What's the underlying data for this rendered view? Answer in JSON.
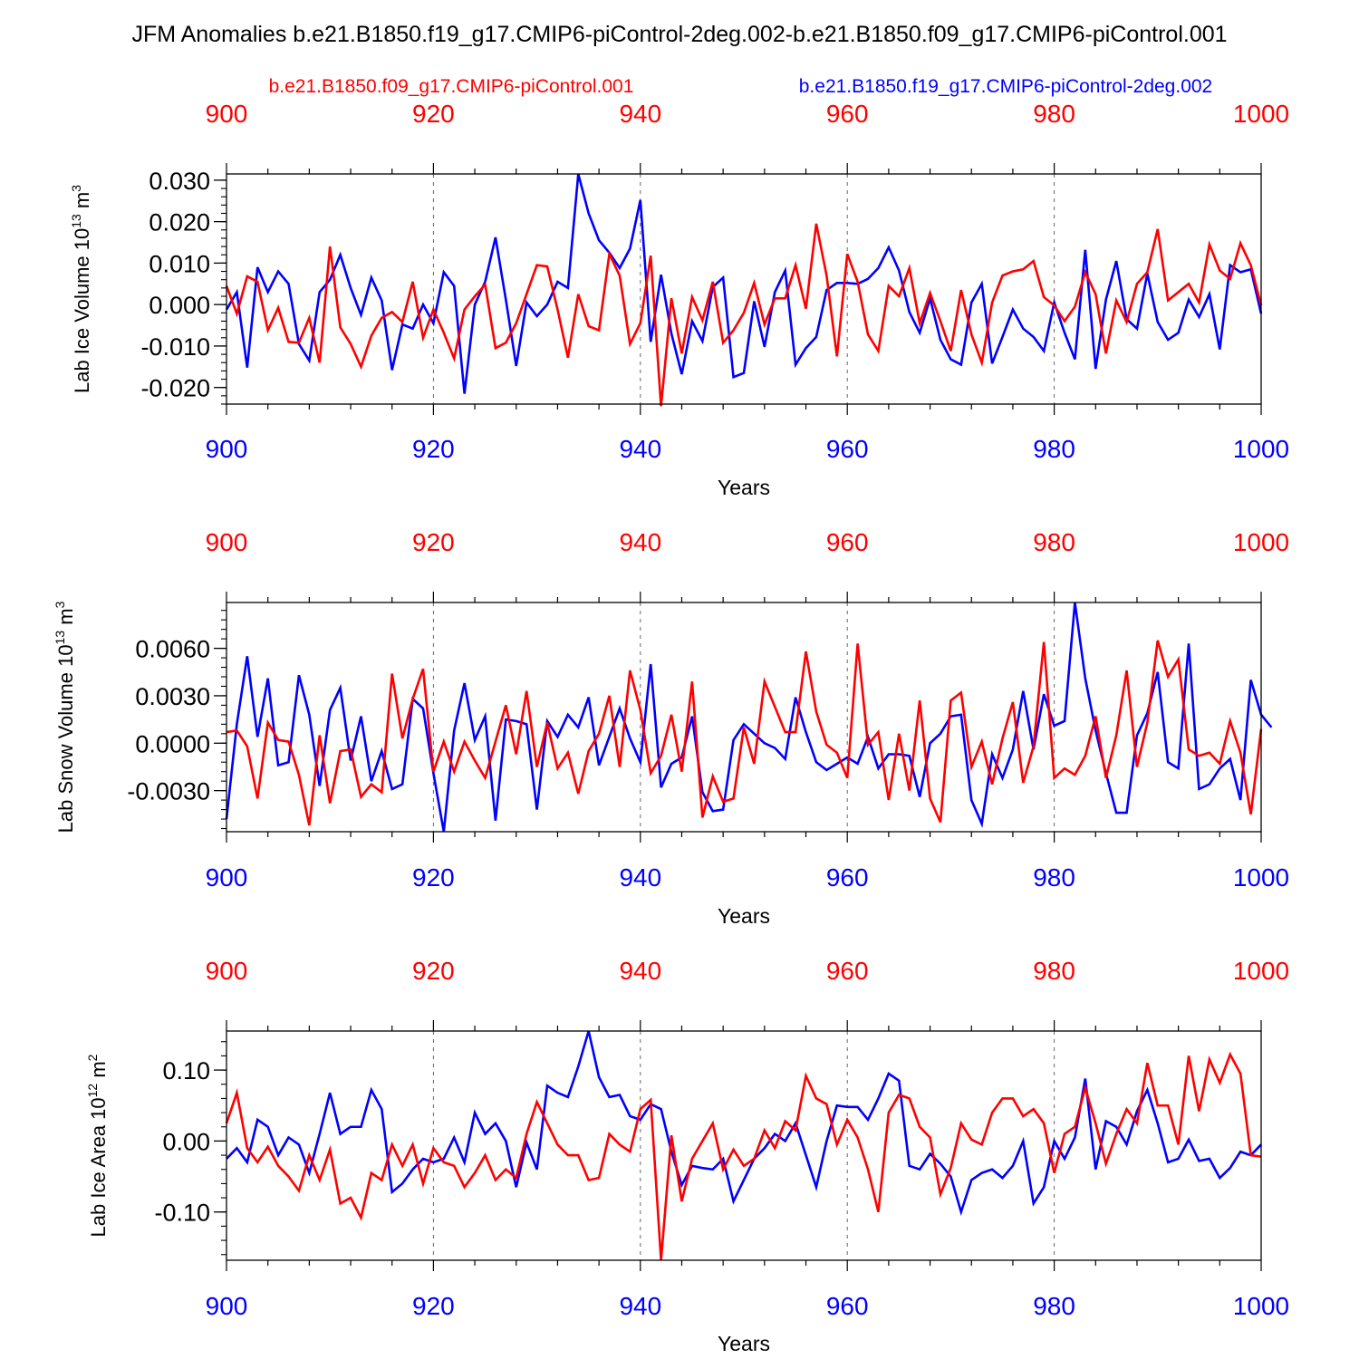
{
  "title": "JFM Anomalies b.e21.B1850.f19_g17.CMIP6-piControl-2deg.002-b.e21.B1850.f09_g17.CMIP6-piControl.001",
  "legend": {
    "red_label": "b.e21.B1850.f09_g17.CMIP6-piControl.001",
    "blue_label": "b.e21.B1850.f19_g17.CMIP6-piControl-2deg.002"
  },
  "colors": {
    "red": "#ff0000",
    "blue": "#0000ff",
    "axis": "#000000"
  },
  "chart_data": [
    {
      "type": "line",
      "ylabel": "Lab Ice Volume 10",
      "ylabel_exp": "13",
      "ylabel_unit": " m",
      "ylabel_unit_exp": "3",
      "xlabel": "Years",
      "xlim": [
        900,
        1000
      ],
      "ylim": [
        -0.024,
        0.0315
      ],
      "yticks": [
        -0.02,
        -0.01,
        0.0,
        0.01,
        0.02,
        0.03
      ],
      "yticklabels": [
        "-0.020",
        "-0.010",
        "0.000",
        "0.010",
        "0.020",
        "0.030"
      ],
      "yminor": 0.002,
      "xticks": [
        900,
        920,
        940,
        960,
        980,
        1000
      ],
      "xticklabels": [
        "900",
        "920",
        "940",
        "960",
        "980",
        "1000"
      ],
      "series": [
        {
          "name": "b.e21.B1850.f19_g17.CMIP6-piControl-2deg.002",
          "color": "blue",
          "values": [
            -0.0012,
            0.003,
            -0.0152,
            0.009,
            0.003,
            0.008,
            0.005,
            -0.0095,
            -0.0135,
            0.003,
            0.006,
            0.012,
            0.004,
            -0.0025,
            0.0065,
            0.001,
            -0.0158,
            -0.0048,
            -0.0058,
            0.0,
            -0.0045,
            0.0078,
            0.0045,
            -0.0215,
            0.0,
            0.0055,
            0.0162,
            0.0012,
            -0.0148,
            0.0005,
            -0.0028,
            0.0,
            0.0055,
            0.004,
            0.0315,
            0.022,
            0.0155,
            0.0125,
            0.0088,
            0.0135,
            0.0252,
            -0.009,
            0.0072,
            -0.007,
            -0.0168,
            -0.004,
            -0.0088,
            0.0042,
            0.0065,
            -0.0175,
            -0.0165,
            0.0008,
            -0.0102,
            0.003,
            0.0082,
            -0.0145,
            -0.0105,
            -0.0078,
            0.0035,
            0.0052,
            0.0052,
            0.005,
            0.0062,
            0.0088,
            0.0138,
            0.0082,
            -0.0018,
            -0.0068,
            0.0015,
            -0.0085,
            -0.0132,
            -0.0145,
            0.0005,
            0.005,
            -0.0142,
            -0.0078,
            -0.0012,
            -0.0058,
            -0.0078,
            -0.0112,
            0.0005,
            -0.0068,
            -0.0132,
            0.0132,
            -0.0155,
            0.0012,
            0.0105,
            -0.0035,
            -0.0058,
            0.0075,
            -0.0042,
            -0.0085,
            -0.0068,
            0.0012,
            -0.003,
            0.0025,
            -0.0108,
            0.0095,
            0.0078,
            0.0085,
            -0.0022
          ]
        },
        {
          "name": "b.e21.B1850.f09_g17.CMIP6-piControl.001",
          "color": "red",
          "values": [
            0.0045,
            -0.0022,
            0.0068,
            0.0055,
            -0.0062,
            -0.0008,
            -0.009,
            -0.0092,
            -0.0032,
            -0.014,
            0.014,
            -0.0055,
            -0.0095,
            -0.015,
            -0.0075,
            -0.0032,
            -0.0018,
            -0.0042,
            0.0055,
            -0.008,
            -0.0012,
            -0.0068,
            -0.013,
            -0.0012,
            0.002,
            0.0048,
            -0.0105,
            -0.0092,
            -0.0045,
            0.0025,
            0.0095,
            0.0092,
            -0.0012,
            -0.0128,
            0.0025,
            -0.0052,
            -0.0062,
            0.0122,
            0.007,
            -0.0095,
            -0.0045,
            0.0118,
            -0.0245,
            0.0015,
            -0.0118,
            0.0018,
            -0.0038,
            0.0055,
            -0.0092,
            -0.0062,
            -0.002,
            0.0052,
            -0.0048,
            0.0015,
            0.0015,
            0.0095,
            -0.001,
            0.0195,
            0.007,
            -0.0125,
            0.0122,
            0.0055,
            -0.0072,
            -0.0112,
            0.0045,
            0.002,
            0.0088,
            -0.0045,
            0.0028,
            -0.004,
            -0.0112,
            0.0035,
            -0.0072,
            -0.014,
            0.0005,
            0.007,
            0.008,
            0.0085,
            0.0105,
            0.0018,
            -0.0002,
            -0.004,
            -0.0005,
            0.0078,
            0.0025,
            -0.0118,
            0.001,
            -0.0042,
            0.005,
            0.0078,
            0.0182,
            0.001,
            0.003,
            0.005,
            0.0005,
            0.0145,
            0.0082,
            0.0062,
            0.0148,
            0.0095,
            -0.0002
          ]
        }
      ]
    },
    {
      "type": "line",
      "ylabel": "Lab Snow Volume 10",
      "ylabel_exp": "13",
      "ylabel_unit": " m",
      "ylabel_unit_exp": "3",
      "xlabel": "Years",
      "xlim": [
        900,
        1000
      ],
      "ylim": [
        -0.0056,
        0.0089
      ],
      "yticks": [
        -0.003,
        0.0,
        0.003,
        0.006
      ],
      "yticklabels": [
        "-0.0030",
        "0.0000",
        "0.0030",
        "0.0060"
      ],
      "yminor": 0.0006,
      "xticks": [
        900,
        920,
        940,
        960,
        980,
        1000
      ],
      "xticklabels": [
        "900",
        "920",
        "940",
        "960",
        "980",
        "1000"
      ],
      "series": [
        {
          "name": "b.e21.B1850.f19_g17.CMIP6-piControl-2deg.002",
          "color": "blue",
          "values": [
            -0.0048,
            0.0012,
            0.0055,
            0.0004,
            0.0041,
            -0.0014,
            -0.0012,
            0.0043,
            0.0018,
            -0.0027,
            0.0021,
            0.0035,
            -0.0011,
            0.0017,
            -0.0024,
            -0.0005,
            -0.0029,
            -0.0026,
            0.0028,
            0.0022,
            -0.0019,
            -0.0056,
            0.0008,
            0.0038,
            0.0002,
            0.0017,
            -0.0049,
            0.0015,
            0.0014,
            0.0012,
            -0.0042,
            0.0014,
            0.0004,
            0.0018,
            0.001,
            0.0029,
            -0.0014,
            0.0004,
            0.0022,
            0.0003,
            -0.0012,
            0.005,
            -0.0028,
            -0.0013,
            -0.0009,
            0.0017,
            -0.0031,
            -0.0043,
            -0.0042,
            0.0002,
            0.0012,
            0.0006,
            0.0,
            -0.0003,
            -0.001,
            0.0029,
            0.0007,
            -0.0012,
            -0.0017,
            -0.0013,
            -0.0009,
            -0.0013,
            0.0004,
            -0.0016,
            -0.0007,
            -0.0007,
            -0.0008,
            -0.0034,
            0.0,
            0.0006,
            0.0017,
            0.0018,
            -0.0036,
            -0.0051,
            -0.0007,
            -0.0022,
            -0.0004,
            0.0033,
            -0.0004,
            0.0031,
            0.0011,
            0.0014,
            0.0089,
            0.0041,
            0.0008,
            -0.0019,
            -0.0044,
            -0.0044,
            0.0005,
            0.0019,
            0.0045,
            -0.0012,
            -0.0016,
            0.0063,
            -0.0029,
            -0.0026,
            -0.0016,
            -0.001,
            -0.0036,
            0.004,
            0.0018,
            0.001
          ]
        },
        {
          "name": "b.e21.B1850.f09_g17.CMIP6-piControl.001",
          "color": "red",
          "values": [
            0.0007,
            0.0008,
            -0.0002,
            -0.0035,
            0.0013,
            0.0002,
            0.0001,
            -0.002,
            -0.0052,
            0.0005,
            -0.0038,
            -0.0005,
            -0.0004,
            -0.0034,
            -0.0026,
            -0.0031,
            0.0044,
            0.0003,
            0.0028,
            0.0047,
            -0.0018,
            0.0001,
            -0.0018,
            0.0001,
            -0.0011,
            -0.0022,
            0.0001,
            0.0024,
            -0.0007,
            0.0033,
            -0.0015,
            0.0013,
            -0.0016,
            -0.0006,
            -0.0032,
            -0.0005,
            0.0006,
            0.003,
            -0.0015,
            0.0046,
            0.0021,
            -0.0019,
            -0.0008,
            0.0018,
            -0.0018,
            0.0039,
            -0.0047,
            -0.0021,
            -0.0037,
            -0.0035,
            0.001,
            -0.0013,
            0.0039,
            0.0023,
            0.0007,
            0.0007,
            0.0058,
            0.002,
            -0.0001,
            -0.0006,
            -0.0022,
            0.0063,
            -0.0001,
            0.0007,
            -0.0036,
            0.0006,
            -0.003,
            0.0027,
            -0.0035,
            -0.005,
            0.0027,
            0.0032,
            -0.0015,
            0.0001,
            -0.0026,
            0.0003,
            0.0026,
            -0.0025,
            -0.0002,
            0.0064,
            -0.0022,
            -0.0016,
            -0.002,
            -0.0008,
            0.0017,
            -0.0022,
            0.0005,
            0.0046,
            -0.0015,
            0.0013,
            0.0065,
            0.0042,
            0.0053,
            -0.0004,
            -0.0008,
            -0.0006,
            -0.0013,
            0.0014,
            -0.0006,
            -0.0045,
            0.0009
          ]
        }
      ]
    },
    {
      "type": "line",
      "ylabel": "Lab Ice Area 10",
      "ylabel_exp": "12",
      "ylabel_unit": " m",
      "ylabel_unit_exp": "2",
      "xlabel": "Years",
      "xlim": [
        900,
        1000
      ],
      "ylim": [
        -0.168,
        0.155
      ],
      "yticks": [
        -0.1,
        0.0,
        0.1
      ],
      "yticklabels": [
        "-0.10",
        "0.00",
        "0.10"
      ],
      "yminor": 0.02,
      "xticks": [
        900,
        920,
        940,
        960,
        980,
        1000
      ],
      "xticklabels": [
        "900",
        "920",
        "940",
        "960",
        "980",
        "1000"
      ],
      "series": [
        {
          "name": "b.e21.B1850.f19_g17.CMIP6-piControl-2deg.002",
          "color": "blue",
          "values": [
            -0.025,
            -0.01,
            -0.03,
            0.03,
            0.02,
            -0.02,
            0.005,
            -0.005,
            -0.045,
            0.01,
            0.068,
            0.01,
            0.02,
            0.02,
            0.072,
            0.045,
            -0.072,
            -0.06,
            -0.04,
            -0.025,
            -0.03,
            -0.025,
            0.005,
            -0.03,
            0.04,
            0.01,
            0.025,
            0.0,
            -0.065,
            -0.002,
            -0.04,
            0.078,
            0.068,
            0.062,
            0.105,
            0.155,
            0.09,
            0.062,
            0.065,
            0.035,
            0.03,
            0.052,
            0.045,
            -0.015,
            -0.062,
            -0.035,
            -0.038,
            -0.04,
            -0.025,
            -0.085,
            -0.055,
            -0.025,
            -0.01,
            0.01,
            0.0,
            0.025,
            -0.02,
            -0.065,
            0.0,
            0.05,
            0.048,
            0.048,
            0.03,
            0.06,
            0.095,
            0.085,
            -0.035,
            -0.04,
            -0.018,
            -0.032,
            -0.05,
            -0.1,
            -0.055,
            -0.045,
            -0.04,
            -0.052,
            -0.035,
            0.0,
            -0.088,
            -0.065,
            0.0,
            -0.025,
            0.005,
            0.088,
            -0.04,
            0.028,
            0.02,
            -0.005,
            0.042,
            0.072,
            0.025,
            -0.03,
            -0.025,
            0.002,
            -0.028,
            -0.025,
            -0.052,
            -0.038,
            -0.015,
            -0.02,
            -0.005
          ]
        },
        {
          "name": "b.e21.B1850.f09_g17.CMIP6-piControl.001",
          "color": "red",
          "values": [
            0.025,
            0.068,
            -0.01,
            -0.03,
            -0.008,
            -0.035,
            -0.05,
            -0.07,
            -0.02,
            -0.055,
            -0.012,
            -0.088,
            -0.08,
            -0.108,
            -0.045,
            -0.055,
            -0.005,
            -0.035,
            -0.005,
            -0.06,
            -0.01,
            -0.03,
            -0.035,
            -0.065,
            -0.045,
            -0.02,
            -0.055,
            -0.04,
            -0.052,
            0.01,
            0.055,
            0.025,
            -0.005,
            -0.02,
            -0.02,
            -0.055,
            -0.052,
            0.01,
            -0.005,
            -0.015,
            0.045,
            0.058,
            -0.168,
            0.008,
            -0.085,
            -0.025,
            0.0,
            0.025,
            -0.04,
            -0.012,
            -0.035,
            -0.025,
            0.015,
            -0.01,
            0.028,
            0.015,
            0.092,
            0.06,
            0.052,
            -0.005,
            0.03,
            0.005,
            -0.04,
            -0.1,
            0.04,
            0.065,
            0.06,
            0.02,
            0.005,
            -0.075,
            -0.038,
            0.025,
            0.002,
            -0.005,
            0.04,
            0.06,
            0.06,
            0.035,
            0.045,
            0.025,
            -0.045,
            0.01,
            0.02,
            0.075,
            0.025,
            -0.032,
            0.01,
            0.045,
            0.025,
            0.11,
            0.05,
            0.05,
            -0.005,
            0.12,
            0.042,
            0.115,
            0.082,
            0.122,
            0.095,
            -0.02,
            -0.022
          ]
        }
      ]
    }
  ]
}
